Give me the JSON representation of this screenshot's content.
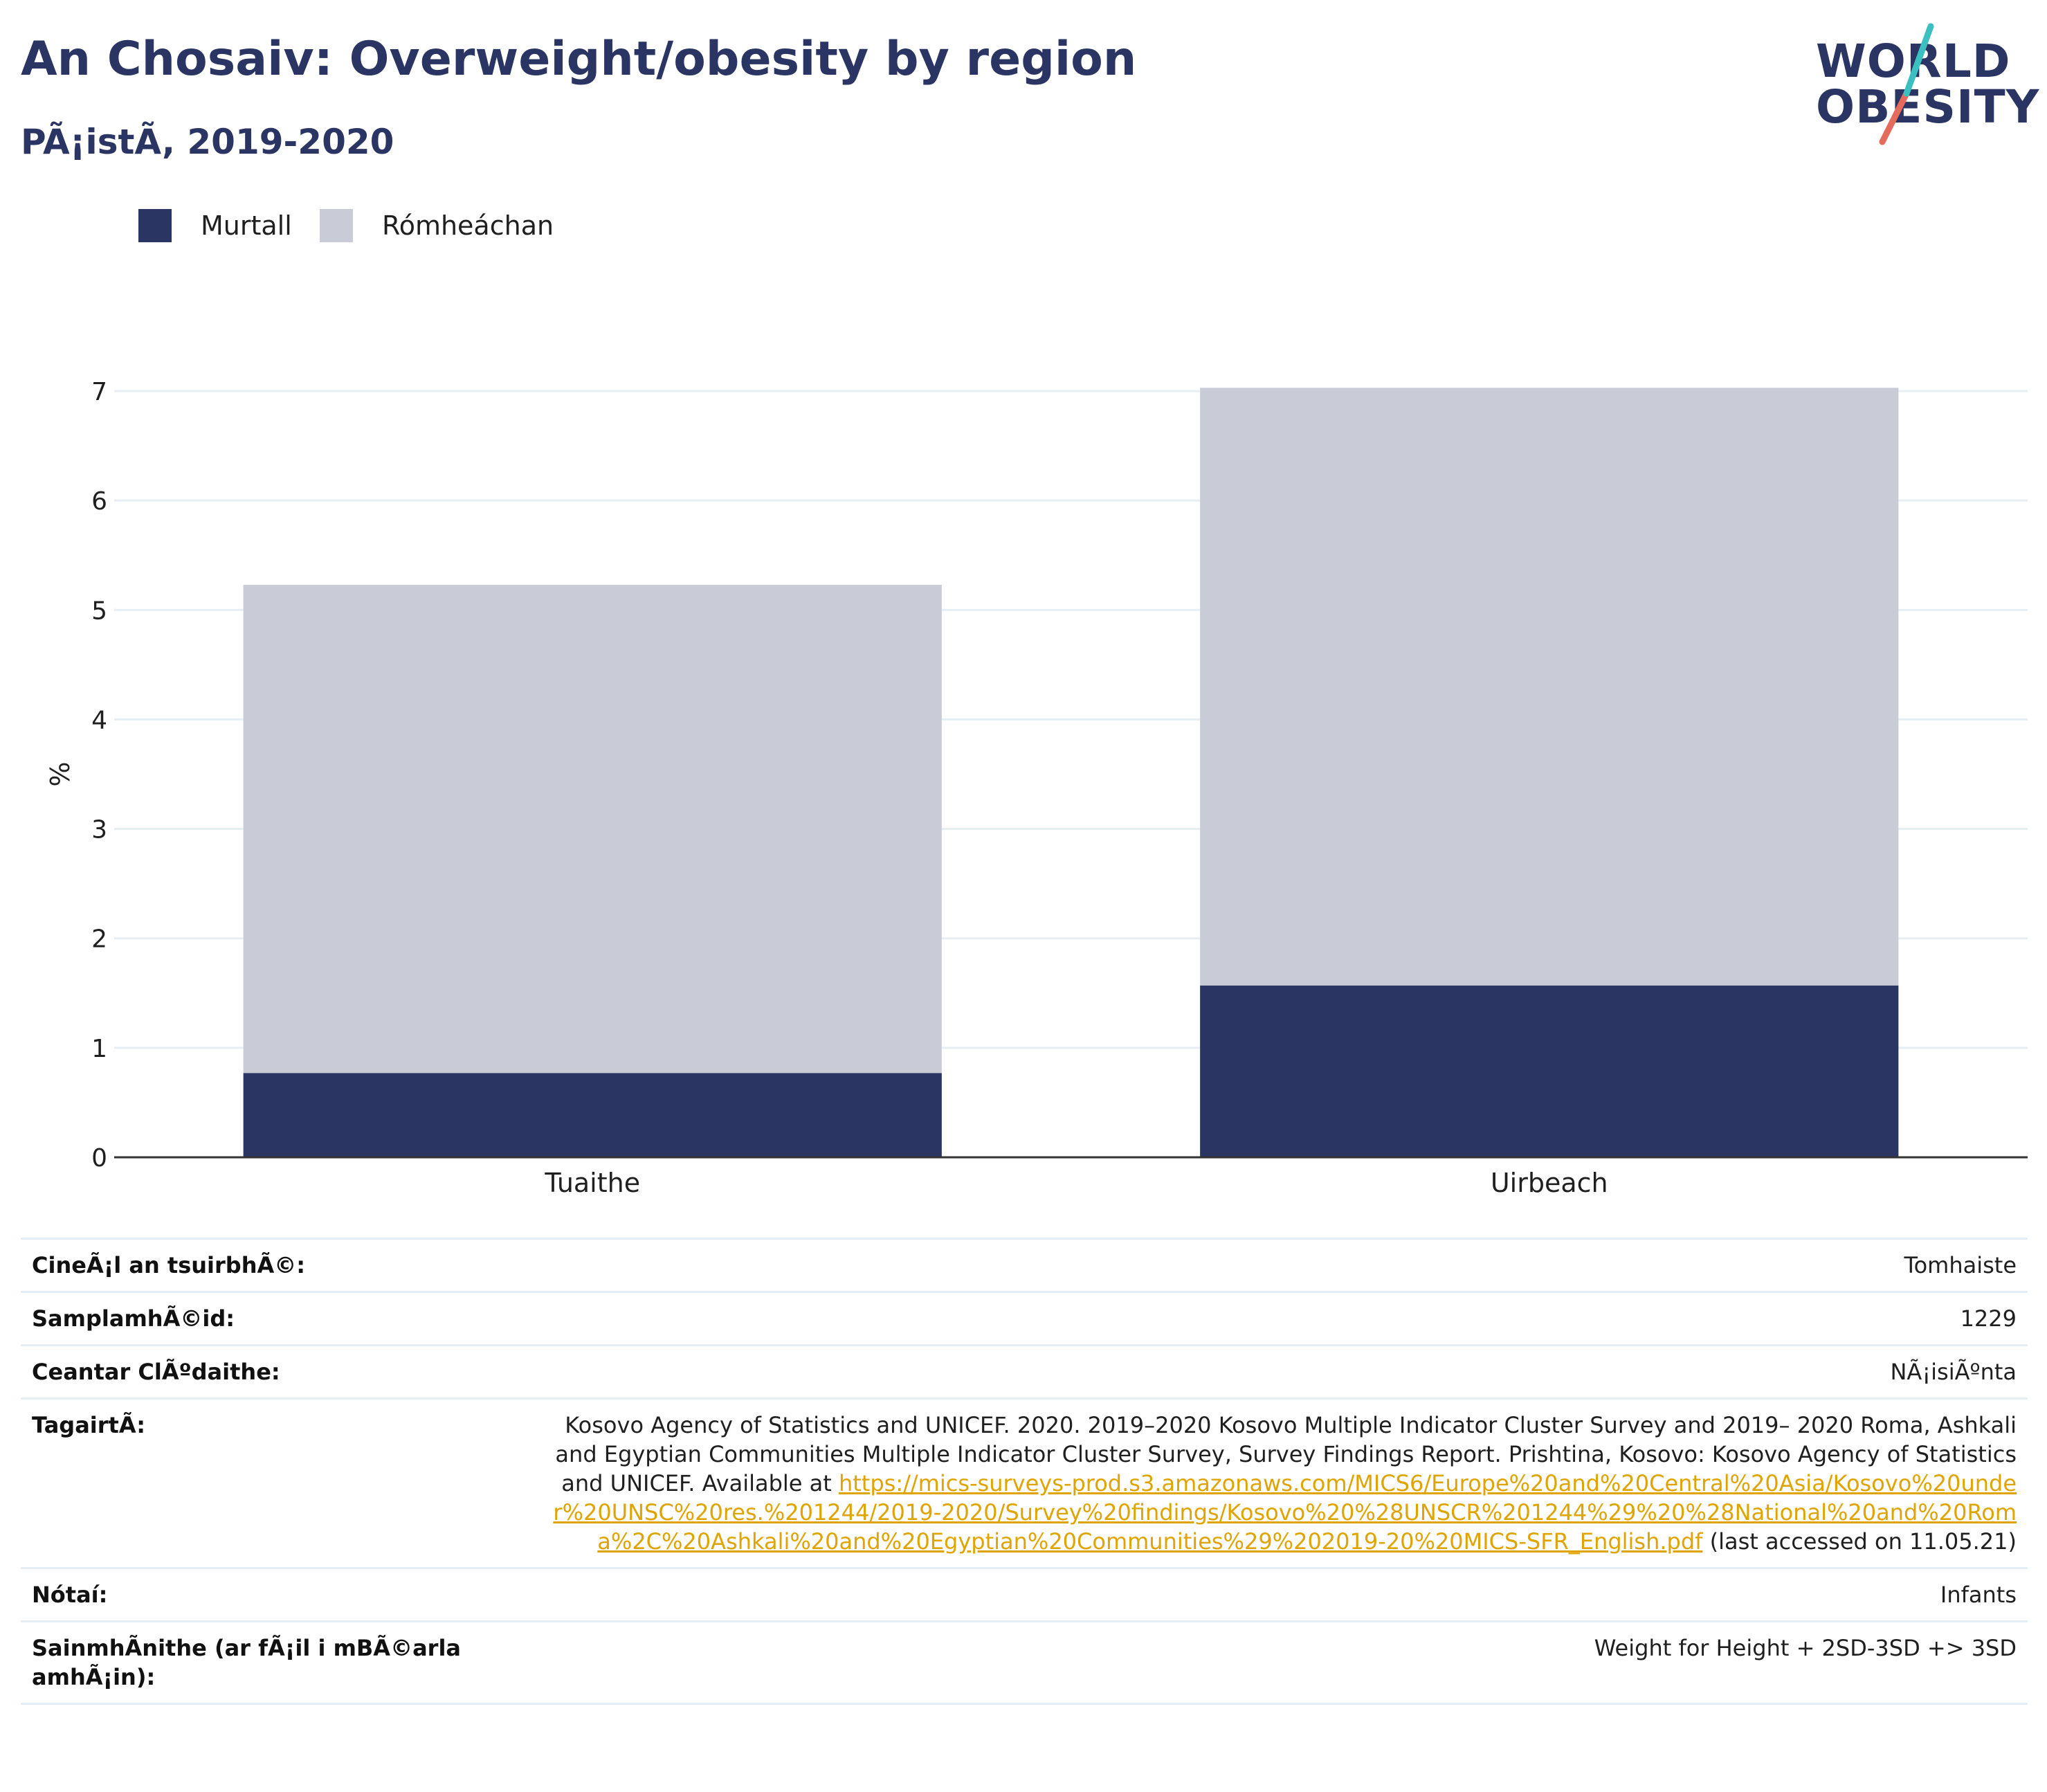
{
  "header": {
    "title": "An Chosaiv: Overweight/obesity by region",
    "subtitle": "PÃ¡istÃ, 2019-2020",
    "logo_line1": "WORLD",
    "logo_line2": "OBESITY"
  },
  "colors": {
    "murtall": "#2a3563",
    "romheachan": "#c9ccd7",
    "title": "#2a3563",
    "grid": "#e6eef3",
    "axis": "#333333",
    "link": "#e0a400",
    "logo_teal": "#3bbfc1",
    "logo_coral": "#e56b5d"
  },
  "legend": [
    {
      "label": "Murtall",
      "color": "#2a3563"
    },
    {
      "label": "Rómheáchan",
      "color": "#c9ccd7"
    }
  ],
  "chart_data": {
    "type": "bar",
    "stacked": true,
    "categories": [
      "Tuaithe",
      "Uirbeach"
    ],
    "series": [
      {
        "name": "Murtall",
        "values": [
          0.77,
          1.57
        ]
      },
      {
        "name": "Rómheáchan",
        "values": [
          4.46,
          5.46
        ]
      }
    ],
    "ylabel": "%",
    "ylim": [
      0,
      7
    ],
    "yticks": [
      0,
      1,
      2,
      3,
      4,
      5,
      6,
      7
    ],
    "grid": true,
    "legend_position": "top-left"
  },
  "meta": [
    {
      "key": "CineÃ¡l an tsuirbhÃ©:",
      "value": "Tomhaiste"
    },
    {
      "key": "SamplamhÃ©id:",
      "value": "1229"
    },
    {
      "key": "Ceantar ClÃºdaithe:",
      "value": "NÃ¡isiÃºnta"
    },
    {
      "key": "TagairtÃ:",
      "value": "Kosovo Agency of Statistics and UNICEF. 2020. 2019–2020 Kosovo Multiple Indicator Cluster Survey and 2019– 2020 Roma, Ashkali and Egyptian Communities Multiple Indicator Cluster Survey, Survey Findings Report. Prishtina, Kosovo: Kosovo Agency of Statistics and UNICEF. Available at ",
      "link": "https://mics-surveys-prod.s3.amazonaws.com/MICS6/Europe%20and%20Central%20Asia/Kosovo%20under%20UNSC%20res.%201244/2019-2020/Survey%20findings/Kosovo%20%28UNSCR%201244%29%20%28National%20and%20Roma%2C%20Ashkali%20and%20Egyptian%20Communities%29%202019-20%20MICS-SFR_English.pdf",
      "suffix": " (last accessed on 11.05.21)"
    },
    {
      "key": "Nótaí:",
      "value": "Infants"
    },
    {
      "key": "SainmhÃnithe (ar fÃ¡il i mBÃ©arla amhÃ¡in):",
      "value": "Weight for Height + 2SD-3SD +> 3SD"
    }
  ]
}
